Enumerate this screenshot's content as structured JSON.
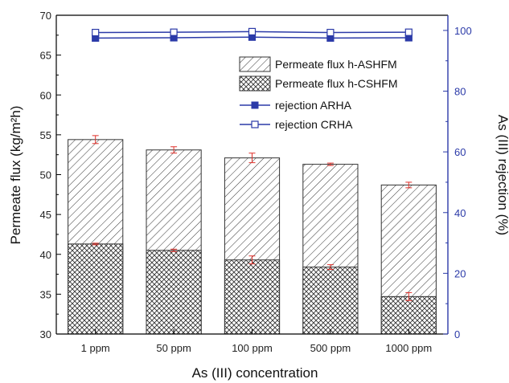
{
  "chart_data": {
    "type": "bar",
    "categories": [
      "1 ppm",
      "50 ppm",
      "100 ppm",
      "500 ppm",
      "1000 ppm"
    ],
    "xlabel": "As (III) concentration",
    "ylabel": "Permeate flux (kg/m²h)",
    "ylabel_right": "As (III) rejection (%)",
    "ylim": [
      30,
      70
    ],
    "ylim_right": [
      0,
      105
    ],
    "yticks": [
      "30",
      "35",
      "40",
      "45",
      "50",
      "55",
      "60",
      "65",
      "70"
    ],
    "yticks_right": [
      "0",
      "20",
      "40",
      "60",
      "80",
      "100"
    ],
    "bar_series": [
      {
        "name": "Permeate flux h-ASHFM",
        "values": [
          54.4,
          53.1,
          52.1,
          51.3,
          48.7
        ],
        "errors": [
          0.5,
          0.4,
          0.6,
          0.15,
          0.35
        ],
        "pattern": "diagonal-hatch"
      },
      {
        "name": "Permeate flux h-CSHFM",
        "values": [
          41.3,
          40.5,
          39.3,
          38.4,
          34.7
        ],
        "errors": [
          0.1,
          0.15,
          0.5,
          0.3,
          0.5
        ],
        "pattern": "cross-hatch"
      }
    ],
    "line_series": [
      {
        "name": "rejection ARHA",
        "values": [
          97.5,
          97.6,
          97.8,
          97.5,
          97.6
        ],
        "marker": "filled-square",
        "axis": "right"
      },
      {
        "name": "rejection CRHA",
        "values": [
          99.3,
          99.4,
          99.6,
          99.3,
          99.4
        ],
        "marker": "open-square",
        "axis": "right"
      }
    ],
    "legend_position": "top-right",
    "colors": {
      "line": "#2b3aa8",
      "error_bar": "#e0302a",
      "bar_edge": "#333333",
      "right_axis": "#2b3aa8"
    }
  }
}
